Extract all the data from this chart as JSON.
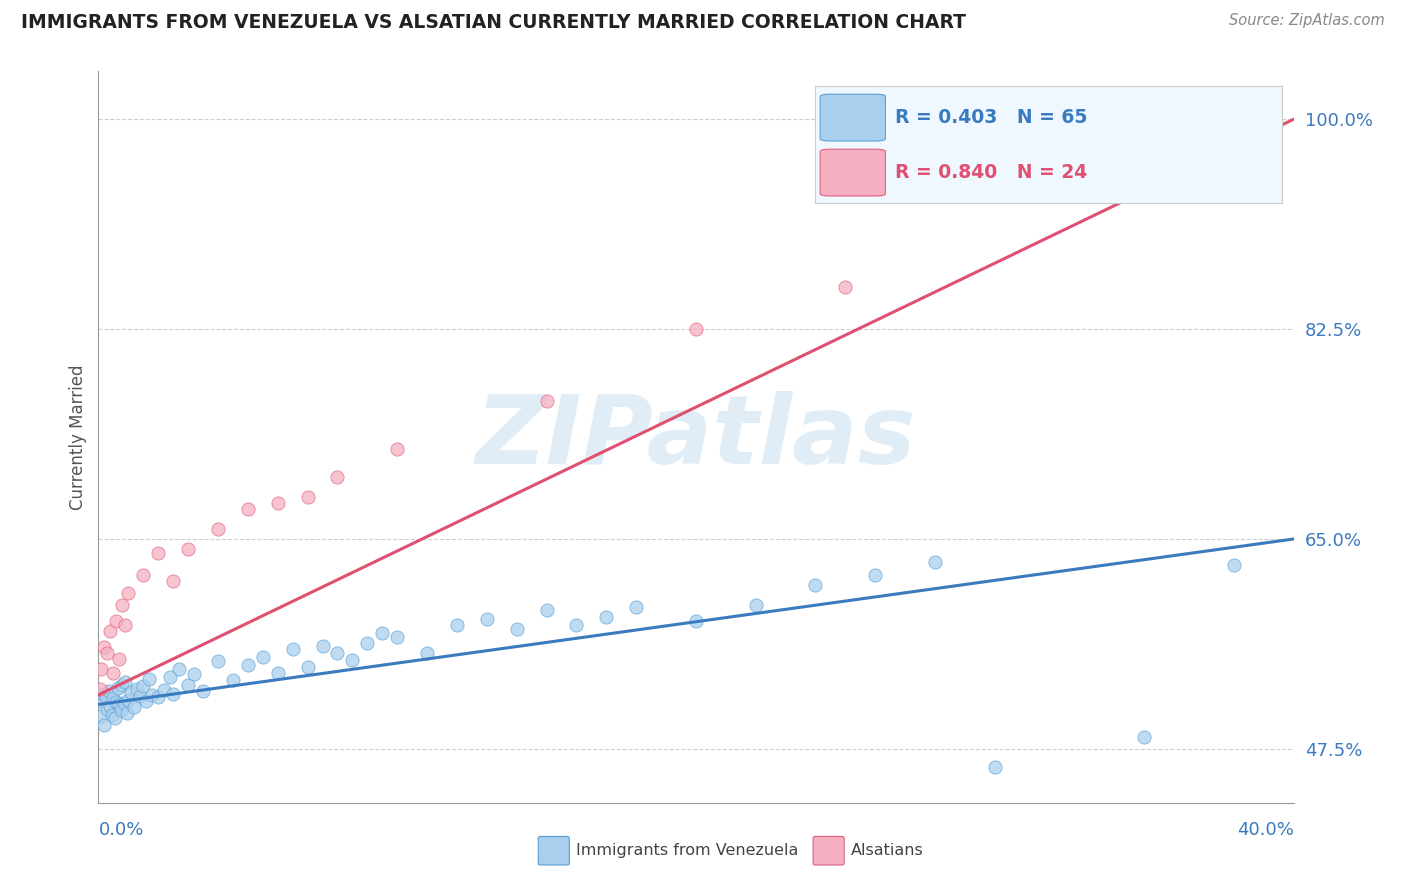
{
  "title": "IMMIGRANTS FROM VENEZUELA VS ALSATIAN CURRENTLY MARRIED CORRELATION CHART",
  "source_text": "Source: ZipAtlas.com",
  "ylabel": "Currently Married",
  "xlim": [
    0.0,
    40.0
  ],
  "ylim": [
    43.0,
    104.0
  ],
  "yticks": [
    47.5,
    65.0,
    82.5,
    100.0
  ],
  "ytick_labels": [
    "47.5%",
    "65.0%",
    "82.5%",
    "100.0%"
  ],
  "series1": {
    "label": "Immigrants from Venezuela",
    "R": 0.403,
    "N": 65,
    "scatter_color": "#aacfee",
    "edge_color": "#5a9fd4",
    "line_color": "#3a7bbf",
    "points": [
      [
        0.05,
        51.5
      ],
      [
        0.1,
        50.2
      ],
      [
        0.15,
        52.1
      ],
      [
        0.2,
        49.5
      ],
      [
        0.25,
        51.8
      ],
      [
        0.3,
        50.8
      ],
      [
        0.35,
        52.3
      ],
      [
        0.4,
        51.1
      ],
      [
        0.45,
        50.3
      ],
      [
        0.5,
        51.7
      ],
      [
        0.55,
        50.1
      ],
      [
        0.6,
        51.4
      ],
      [
        0.65,
        52.6
      ],
      [
        0.7,
        51.2
      ],
      [
        0.75,
        50.7
      ],
      [
        0.8,
        52.8
      ],
      [
        0.85,
        51.3
      ],
      [
        0.9,
        53.1
      ],
      [
        0.95,
        50.5
      ],
      [
        1.0,
        51.6
      ],
      [
        1.1,
        52.2
      ],
      [
        1.2,
        51.0
      ],
      [
        1.3,
        52.5
      ],
      [
        1.4,
        51.9
      ],
      [
        1.5,
        52.7
      ],
      [
        1.6,
        51.5
      ],
      [
        1.7,
        53.3
      ],
      [
        1.8,
        52.0
      ],
      [
        2.0,
        51.8
      ],
      [
        2.2,
        52.4
      ],
      [
        2.4,
        53.5
      ],
      [
        2.5,
        52.1
      ],
      [
        2.7,
        54.2
      ],
      [
        3.0,
        52.8
      ],
      [
        3.2,
        53.7
      ],
      [
        3.5,
        52.3
      ],
      [
        4.0,
        54.8
      ],
      [
        4.5,
        53.2
      ],
      [
        5.0,
        54.5
      ],
      [
        5.5,
        55.2
      ],
      [
        6.0,
        53.8
      ],
      [
        6.5,
        55.8
      ],
      [
        7.0,
        54.3
      ],
      [
        7.5,
        56.1
      ],
      [
        8.0,
        55.5
      ],
      [
        8.5,
        54.9
      ],
      [
        9.0,
        56.3
      ],
      [
        9.5,
        57.2
      ],
      [
        10.0,
        56.8
      ],
      [
        11.0,
        55.5
      ],
      [
        12.0,
        57.8
      ],
      [
        13.0,
        58.3
      ],
      [
        14.0,
        57.5
      ],
      [
        15.0,
        59.1
      ],
      [
        16.0,
        57.8
      ],
      [
        17.0,
        58.5
      ],
      [
        18.0,
        59.3
      ],
      [
        20.0,
        58.2
      ],
      [
        22.0,
        59.5
      ],
      [
        24.0,
        61.2
      ],
      [
        26.0,
        62.0
      ],
      [
        28.0,
        63.1
      ],
      [
        30.0,
        46.0
      ],
      [
        35.0,
        48.5
      ],
      [
        38.0,
        62.8
      ]
    ],
    "trendline_x": [
      0.0,
      40.0
    ],
    "trendline_y": [
      51.2,
      65.0
    ]
  },
  "series2": {
    "label": "Alsatians",
    "R": 0.84,
    "N": 24,
    "scatter_color": "#f4afc0",
    "edge_color": "#e06080",
    "line_color": "#e05070",
    "points": [
      [
        0.05,
        52.5
      ],
      [
        0.1,
        54.2
      ],
      [
        0.2,
        56.0
      ],
      [
        0.3,
        55.5
      ],
      [
        0.4,
        57.3
      ],
      [
        0.5,
        53.8
      ],
      [
        0.6,
        58.2
      ],
      [
        0.7,
        55.0
      ],
      [
        0.8,
        59.5
      ],
      [
        0.9,
        57.8
      ],
      [
        1.0,
        60.5
      ],
      [
        1.5,
        62.0
      ],
      [
        2.0,
        63.8
      ],
      [
        2.5,
        61.5
      ],
      [
        3.0,
        64.2
      ],
      [
        4.0,
        65.8
      ],
      [
        5.0,
        67.5
      ],
      [
        6.0,
        68.0
      ],
      [
        7.0,
        68.5
      ],
      [
        8.0,
        70.2
      ],
      [
        10.0,
        72.5
      ],
      [
        15.0,
        76.5
      ],
      [
        20.0,
        82.5
      ],
      [
        25.0,
        86.0
      ]
    ],
    "trendline_x": [
      0.0,
      40.0
    ],
    "trendline_y": [
      52.0,
      100.0
    ]
  },
  "watermark_text": "ZIPatlas",
  "watermark_color": "#c8dff0",
  "background_color": "#ffffff",
  "grid_color": "#bbbbbb",
  "title_color": "#222222",
  "tick_label_color": "#3a7bbf",
  "legend_facecolor": "#f0f8ff",
  "legend_edgecolor": "#cccccc"
}
